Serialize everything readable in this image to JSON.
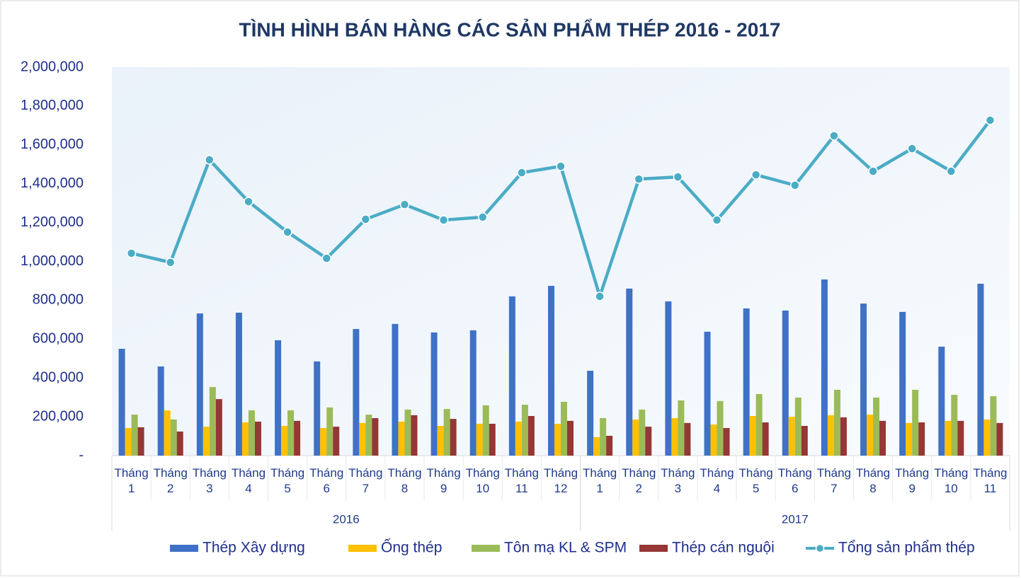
{
  "chart_data": {
    "type": "bar",
    "title": "TÌNH HÌNH BÁN HÀNG CÁC SẢN PHẨM THÉP 2016 - 2017",
    "groups": [
      {
        "name": "2016",
        "categories": [
          "Tháng 1",
          "Tháng 2",
          "Tháng 3",
          "Tháng 4",
          "Tháng 5",
          "Tháng 6",
          "Tháng 7",
          "Tháng 8",
          "Tháng 9",
          "Tháng 10",
          "Tháng 11",
          "Tháng 12"
        ]
      },
      {
        "name": "2017",
        "categories": [
          "Tháng 1",
          "Tháng 2",
          "Tháng 3",
          "Tháng 4",
          "Tháng 5",
          "Tháng 6",
          "Tháng 7",
          "Tháng 8",
          "Tháng 9",
          "Tháng 10",
          "Tháng 11"
        ]
      }
    ],
    "series": [
      {
        "name": "Thép Xây dựng",
        "color": "#3f72c6",
        "values": [
          550000,
          459000,
          732000,
          736000,
          594000,
          485000,
          652000,
          678000,
          634000,
          645000,
          820000,
          874000,
          437000,
          860000,
          794000,
          638000,
          758000,
          747000,
          907000,
          783000,
          740000,
          561000,
          885000
        ]
      },
      {
        "name": "Ống thép",
        "color": "#ffc000",
        "values": [
          142000,
          233000,
          149000,
          171000,
          153000,
          142000,
          168000,
          175000,
          153000,
          164000,
          175000,
          164000,
          95000,
          186000,
          193000,
          160000,
          204000,
          200000,
          208000,
          211000,
          168000,
          179000,
          186000
        ]
      },
      {
        "name": "Tôn mạ KL & SPM",
        "color": "#9bbb59",
        "values": [
          211000,
          186000,
          353000,
          233000,
          233000,
          248000,
          211000,
          237000,
          240000,
          259000,
          262000,
          277000,
          193000,
          237000,
          284000,
          281000,
          317000,
          299000,
          339000,
          299000,
          339000,
          313000,
          306000
        ]
      },
      {
        "name": "Thép cán nguội",
        "color": "#953735",
        "values": [
          146000,
          124000,
          291000,
          175000,
          179000,
          149000,
          193000,
          208000,
          189000,
          164000,
          204000,
          179000,
          102000,
          149000,
          168000,
          142000,
          171000,
          153000,
          197000,
          179000,
          171000,
          179000,
          168000
        ]
      },
      {
        "name": "Tổng sản phẩm thép",
        "color": "#4bacc6",
        "type": "line",
        "values": [
          1042000,
          995000,
          1523000,
          1308000,
          1151000,
          1016000,
          1217000,
          1293000,
          1213000,
          1228000,
          1457000,
          1490000,
          820000,
          1424000,
          1435000,
          1213000,
          1446000,
          1392000,
          1647000,
          1464000,
          1581000,
          1464000,
          1727000
        ]
      }
    ],
    "ylim": [
      0,
      2000000
    ],
    "yticks": [
      {
        "value": 0,
        "label": "-"
      },
      {
        "value": 200000,
        "label": "200,000"
      },
      {
        "value": 400000,
        "label": "400,000"
      },
      {
        "value": 600000,
        "label": "600,000"
      },
      {
        "value": 800000,
        "label": "800,000"
      },
      {
        "value": 1000000,
        "label": "1,000,000"
      },
      {
        "value": 1200000,
        "label": "1,200,000"
      },
      {
        "value": 1400000,
        "label": "1,400,000"
      },
      {
        "value": 1600000,
        "label": "1,600,000"
      },
      {
        "value": 1800000,
        "label": "1,800,000"
      },
      {
        "value": 2000000,
        "label": "2,000,000"
      }
    ],
    "grid": false,
    "legend": "bottom"
  }
}
